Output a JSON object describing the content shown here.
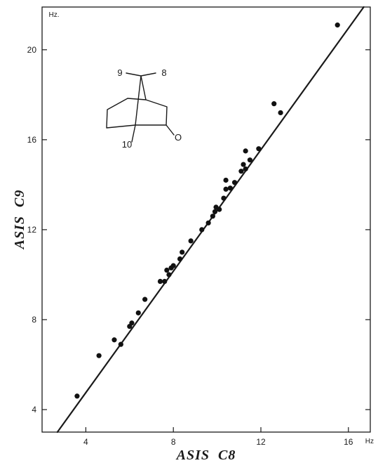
{
  "chart_data": {
    "type": "scatter",
    "xlabel": "ASIS  C8",
    "ylabel": "ASIS  C9",
    "x_unit": "Hz",
    "y_unit": "Hz.",
    "xlim": [
      2,
      17
    ],
    "ylim": [
      3,
      21.9
    ],
    "x_ticks": [
      4,
      8,
      12,
      16
    ],
    "y_ticks": [
      4,
      8,
      12,
      16,
      20
    ],
    "grid": false,
    "fit_line": {
      "from": [
        2.7,
        3.0
      ],
      "to": [
        16.7,
        21.9
      ]
    },
    "molecule_labels": [
      "9",
      "8",
      "10",
      "O"
    ],
    "points": [
      {
        "x": 3.6,
        "y": 4.6
      },
      {
        "x": 4.6,
        "y": 6.4
      },
      {
        "x": 5.3,
        "y": 7.1
      },
      {
        "x": 5.6,
        "y": 6.9
      },
      {
        "x": 6.0,
        "y": 7.7
      },
      {
        "x": 6.1,
        "y": 7.85
      },
      {
        "x": 6.4,
        "y": 8.3
      },
      {
        "x": 6.7,
        "y": 8.9
      },
      {
        "x": 7.4,
        "y": 9.7
      },
      {
        "x": 7.6,
        "y": 9.7
      },
      {
        "x": 7.7,
        "y": 10.2
      },
      {
        "x": 7.8,
        "y": 10.0
      },
      {
        "x": 7.9,
        "y": 10.3
      },
      {
        "x": 8.0,
        "y": 10.4
      },
      {
        "x": 8.3,
        "y": 10.7
      },
      {
        "x": 8.4,
        "y": 11.0
      },
      {
        "x": 8.8,
        "y": 11.5
      },
      {
        "x": 9.3,
        "y": 12.0
      },
      {
        "x": 9.6,
        "y": 12.3
      },
      {
        "x": 9.8,
        "y": 12.6
      },
      {
        "x": 9.9,
        "y": 12.8
      },
      {
        "x": 9.95,
        "y": 13.0
      },
      {
        "x": 10.1,
        "y": 12.9
      },
      {
        "x": 10.3,
        "y": 13.4
      },
      {
        "x": 10.4,
        "y": 13.8
      },
      {
        "x": 10.4,
        "y": 14.2
      },
      {
        "x": 10.6,
        "y": 13.85
      },
      {
        "x": 10.8,
        "y": 14.1
      },
      {
        "x": 11.1,
        "y": 14.6
      },
      {
        "x": 11.2,
        "y": 14.9
      },
      {
        "x": 11.3,
        "y": 14.7
      },
      {
        "x": 11.3,
        "y": 15.5
      },
      {
        "x": 11.5,
        "y": 15.1
      },
      {
        "x": 11.9,
        "y": 15.6
      },
      {
        "x": 12.6,
        "y": 17.6
      },
      {
        "x": 12.9,
        "y": 17.2
      },
      {
        "x": 15.5,
        "y": 21.1
      }
    ]
  }
}
